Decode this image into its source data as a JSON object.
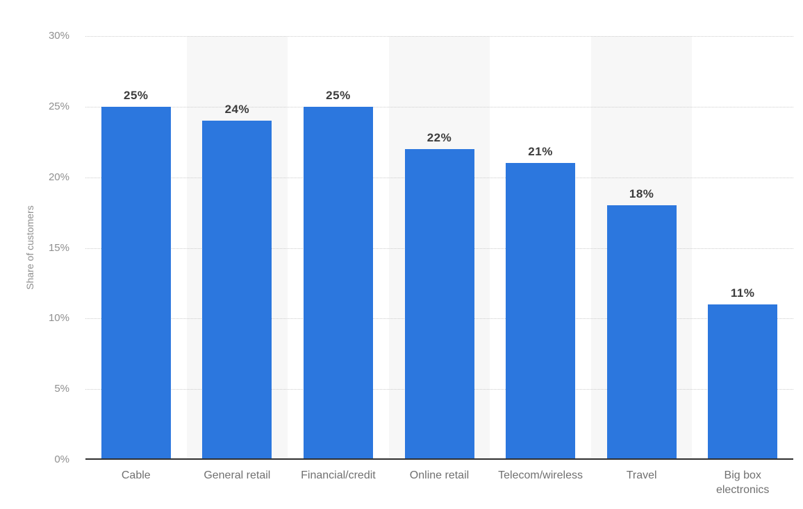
{
  "chart_data": {
    "type": "bar",
    "title": "",
    "categories": [
      "Cable",
      "General retail",
      "Financial/credit",
      "Online retail",
      "Telecom/wireless",
      "Travel",
      "Big box electronics"
    ],
    "category_display": [
      "Cable",
      "General retail",
      "Financial/credit",
      "Online retail",
      "Telecom/wireless",
      "Travel",
      "Big box\nelectronics"
    ],
    "values": [
      25,
      24,
      25,
      22,
      21,
      18,
      11
    ],
    "value_suffix": "%",
    "xlabel": "",
    "ylabel": "Share of customers",
    "ylim": [
      0,
      30
    ],
    "ytick_values": [
      30,
      25,
      20,
      15,
      10,
      5,
      0
    ],
    "ytick_suffix": "%",
    "grid": "horizontal dotted gridlines, on",
    "legend": "none",
    "plot_bands": "alternating vertical background stripes behind columns 2, 4 and 6",
    "striped_columns": [
      1,
      3,
      5
    ],
    "colors": {
      "bar": "#2c77de",
      "stripe": "#f7f7f7",
      "gridline": "#cccccc",
      "axis_line": "#2f2f2f",
      "tick_label": "#8f8f8f",
      "category_label": "#707070",
      "value_label": "#3c3c3c",
      "background": "#ffffff"
    }
  }
}
